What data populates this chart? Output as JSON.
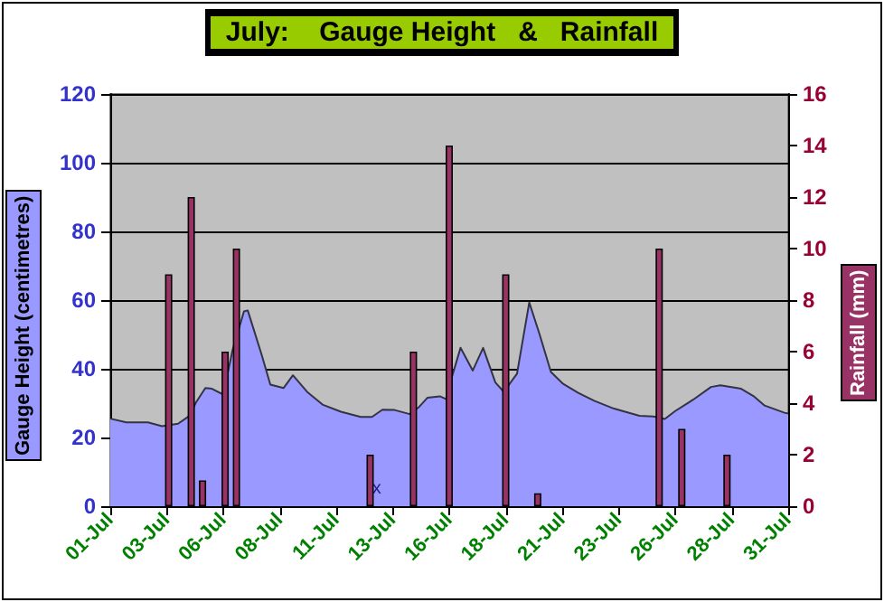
{
  "chart_data": {
    "type": "bar",
    "title": "July:    Gauge Height   &   Rainfall",
    "ylabel": "Gauge Height (centimetres)",
    "y2label": "Rainfall (mm)",
    "xlim": [
      "--07-01",
      "--07-31"
    ],
    "xticks": [
      {
        "value": "--07-01",
        "label": "01-Jul"
      },
      {
        "value": "--07-03T12:00",
        "label": "03-Jul"
      },
      {
        "value": "--07-06",
        "label": "06-Jul"
      },
      {
        "value": "--07-08T12:00",
        "label": "08-Jul"
      },
      {
        "value": "--07-11",
        "label": "11-Jul"
      },
      {
        "value": "--07-13T12:00",
        "label": "13-Jul"
      },
      {
        "value": "--07-16",
        "label": "16-Jul"
      },
      {
        "value": "--07-18T12:00",
        "label": "18-Jul"
      },
      {
        "value": "--07-21",
        "label": "21-Jul"
      },
      {
        "value": "--07-23T12:00",
        "label": "23-Jul"
      },
      {
        "value": "--07-26",
        "label": "26-Jul"
      },
      {
        "value": "--07-28T12:00",
        "label": "28-Jul"
      },
      {
        "value": "--07-31",
        "label": "31-Jul"
      }
    ],
    "ylim": [
      0,
      120
    ],
    "yticks": [
      0,
      20,
      40,
      60,
      80,
      100,
      120
    ],
    "y2lim": [
      0,
      16
    ],
    "y2ticks": [
      0,
      2,
      4,
      6,
      8,
      10,
      12,
      14,
      16
    ],
    "grid": "y",
    "annotations": [
      {
        "text": "x",
        "x": "--07-12T19:00",
        "y": 5
      }
    ],
    "series": [
      {
        "type": "area",
        "color": "#9999ff",
        "x": [
          "--07-01T00:00",
          "--07-01T17:00",
          "--07-02T16:00",
          "--07-03T07:00",
          "--07-04T00:00",
          "--07-04T12:00",
          "--07-04T19:00",
          "--07-05T05:00",
          "--07-05T12:00",
          "--07-06T00:00",
          "--07-06T10:00",
          "--07-06T22:00",
          "--07-07T02:00",
          "--07-07T17:00",
          "--07-08T02:00",
          "--07-08T16:00",
          "--07-09T02:00",
          "--07-09T17:00",
          "--07-10T10:00",
          "--07-11T05:00",
          "--07-12T02:00",
          "--07-12T14:00",
          "--07-13T01:00",
          "--07-13T14:00",
          "--07-14T06:00",
          "--07-14T16:00",
          "--07-15T01:00",
          "--07-15T14:00",
          "--07-15T22:00",
          "--07-16T00:00",
          "--07-16T12:00",
          "--07-17T01:00",
          "--07-17T12:00",
          "--07-18T01:00",
          "--07-18T10:00",
          "--07-19T00:00",
          "--07-19T13:00",
          "--07-20T00:00",
          "--07-20T12:00",
          "--07-21T01:00",
          "--07-21T17:00",
          "--07-22T10:00",
          "--07-23T07:00",
          "--07-24T10:00",
          "--07-25T01:00",
          "--07-25T13:00",
          "--07-26T00:00",
          "--07-26T19:00",
          "--07-27T14:00",
          "--07-28T00:00",
          "--07-28T22:00",
          "--07-29T11:00",
          "--07-29T23:00",
          "--07-30T20:00",
          "--07-31T00:00"
        ],
        "values": [
          25.5,
          24.4,
          24.4,
          23.3,
          24,
          26.3,
          30.2,
          34.4,
          34.2,
          32.5,
          45.6,
          56.7,
          57,
          43.9,
          35.4,
          34.4,
          38.1,
          33.3,
          29.5,
          27.5,
          26,
          26,
          28.1,
          28,
          26.8,
          28.9,
          31.6,
          32,
          31,
          35,
          46.1,
          39.5,
          46.1,
          36,
          33.3,
          38.6,
          59.3,
          50,
          39.1,
          35.6,
          33,
          30.7,
          28.4,
          26.3,
          26.1,
          25.4,
          27.7,
          31,
          34.7,
          35.2,
          34.2,
          32.1,
          29.3,
          27.2,
          27
        ]
      },
      {
        "axis": "y2",
        "color": "#993366",
        "x": [
          "--07-03T14:00",
          "--07-04T14:00",
          "--07-05T02:00",
          "--07-06T02:00",
          "--07-06T14:00",
          "--07-12T12:00",
          "--07-14T10:00",
          "--07-16T00:00",
          "--07-18T12:00",
          "--07-19T22:00",
          "--07-25T07:00",
          "--07-26T07:00",
          "--07-28T07:00"
        ],
        "values": [
          9,
          12,
          1,
          6,
          10,
          2,
          6,
          14,
          9,
          0.5,
          10,
          3,
          2
        ]
      }
    ]
  }
}
